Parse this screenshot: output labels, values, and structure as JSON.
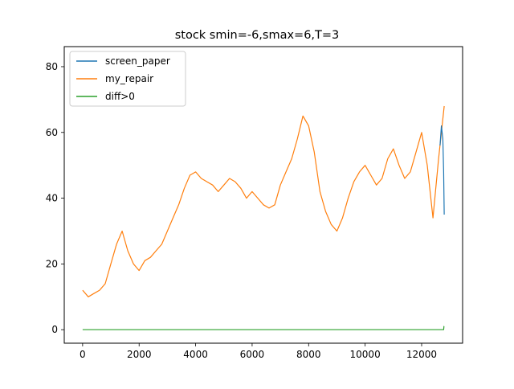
{
  "chart_data": {
    "type": "line",
    "title": "stock smin=-6,smax=6,T=3",
    "xlabel": "",
    "ylabel": "",
    "xlim": [
      -650,
      13450
    ],
    "ylim": [
      -4.1,
      86.1
    ],
    "xticks": [
      0,
      2000,
      4000,
      6000,
      8000,
      10000,
      12000
    ],
    "yticks": [
      0,
      20,
      40,
      60,
      80
    ],
    "grid": false,
    "legend_position": "top-left",
    "series": [
      {
        "name": "screen_paper",
        "color": "#1f77b4",
        "x": [
          12650,
          12700,
          12750,
          12780,
          12800
        ],
        "y": [
          56,
          62,
          58,
          48,
          35
        ]
      },
      {
        "name": "my_repair",
        "color": "#ff7f0e",
        "x": [
          0,
          200,
          400,
          600,
          800,
          1000,
          1200,
          1400,
          1600,
          1800,
          2000,
          2200,
          2400,
          2600,
          2800,
          3000,
          3200,
          3400,
          3600,
          3800,
          4000,
          4200,
          4400,
          4600,
          4800,
          5000,
          5200,
          5400,
          5600,
          5800,
          6000,
          6200,
          6400,
          6600,
          6800,
          7000,
          7200,
          7400,
          7600,
          7800,
          8000,
          8200,
          8400,
          8600,
          8800,
          9000,
          9200,
          9400,
          9600,
          9800,
          10000,
          10200,
          10400,
          10600,
          10800,
          11000,
          11200,
          11400,
          11600,
          11800,
          12000,
          12200,
          12400,
          12600,
          12800
        ],
        "y": [
          12,
          10,
          11,
          12,
          14,
          20,
          26,
          30,
          24,
          20,
          18,
          21,
          22,
          24,
          26,
          30,
          34,
          38,
          43,
          47,
          48,
          46,
          45,
          44,
          42,
          44,
          46,
          45,
          43,
          40,
          42,
          40,
          38,
          37,
          38,
          44,
          48,
          52,
          58,
          65,
          62,
          54,
          42,
          36,
          32,
          30,
          34,
          40,
          45,
          48,
          50,
          47,
          44,
          46,
          52,
          55,
          50,
          46,
          48,
          54,
          60,
          50,
          34,
          52,
          68
        ]
      },
      {
        "name": "diff>0",
        "color": "#2ca02c",
        "x": [
          0,
          12780,
          12790,
          12800
        ],
        "y": [
          0,
          0,
          1,
          1
        ]
      }
    ]
  }
}
